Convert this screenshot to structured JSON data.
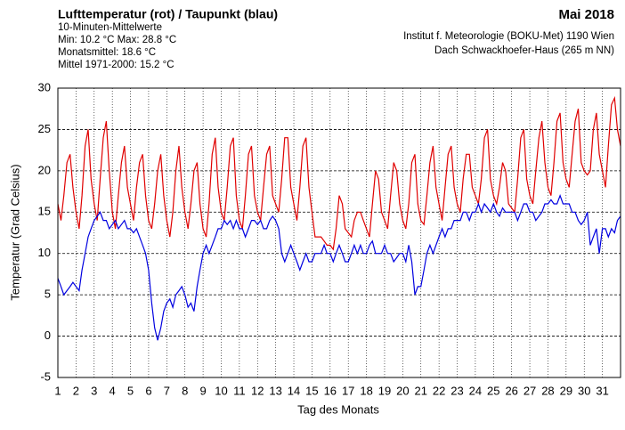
{
  "chart_data": {
    "type": "line",
    "title": "Lufttemperatur (rot) / Taupunkt (blau)",
    "subtitle": "10-Minuten-Mittelwerte",
    "annotations": [
      "Min:  10.2 °C   Max:  28.8 °C",
      "Monatsmittel:  18.6 °C",
      "Mittel 1971-2000:  15.2 °C"
    ],
    "period": "Mai 2018",
    "source": [
      "Institut f. Meteorologie (BOKU-Met) 1190 Wien",
      "Dach Schwackhoefer-Haus (265 m NN)"
    ],
    "x_label": "Tag des Monats",
    "y_label": "Temperatur (Grad Celsius)",
    "x": [
      1,
      1.17,
      1.33,
      1.5,
      1.67,
      1.83,
      2,
      2.17,
      2.33,
      2.5,
      2.67,
      2.83,
      3,
      3.17,
      3.33,
      3.5,
      3.67,
      3.83,
      4,
      4.17,
      4.33,
      4.5,
      4.67,
      4.83,
      5,
      5.17,
      5.33,
      5.5,
      5.67,
      5.83,
      6,
      6.17,
      6.33,
      6.5,
      6.67,
      6.83,
      7,
      7.17,
      7.33,
      7.5,
      7.67,
      7.83,
      8,
      8.17,
      8.33,
      8.5,
      8.67,
      8.83,
      9,
      9.17,
      9.33,
      9.5,
      9.67,
      9.83,
      10,
      10.17,
      10.33,
      10.5,
      10.67,
      10.83,
      11,
      11.17,
      11.33,
      11.5,
      11.67,
      11.83,
      12,
      12.17,
      12.33,
      12.5,
      12.67,
      12.83,
      13,
      13.17,
      13.33,
      13.5,
      13.67,
      13.83,
      14,
      14.17,
      14.33,
      14.5,
      14.67,
      14.83,
      15,
      15.17,
      15.33,
      15.5,
      15.67,
      15.83,
      16,
      16.17,
      16.33,
      16.5,
      16.67,
      16.83,
      17,
      17.17,
      17.33,
      17.5,
      17.67,
      17.83,
      18,
      18.17,
      18.33,
      18.5,
      18.67,
      18.83,
      19,
      19.17,
      19.33,
      19.5,
      19.67,
      19.83,
      20,
      20.17,
      20.33,
      20.5,
      20.67,
      20.83,
      21,
      21.17,
      21.33,
      21.5,
      21.67,
      21.83,
      22,
      22.17,
      22.33,
      22.5,
      22.67,
      22.83,
      23,
      23.17,
      23.33,
      23.5,
      23.67,
      23.83,
      24,
      24.17,
      24.33,
      24.5,
      24.67,
      24.83,
      25,
      25.17,
      25.33,
      25.5,
      25.67,
      25.83,
      26,
      26.17,
      26.33,
      26.5,
      26.67,
      26.83,
      27,
      27.17,
      27.33,
      27.5,
      27.67,
      27.83,
      28,
      28.17,
      28.33,
      28.5,
      28.67,
      28.83,
      29,
      29.17,
      29.33,
      29.5,
      29.67,
      29.83,
      30,
      30.17,
      30.33,
      30.5,
      30.67,
      30.83,
      31,
      31.17,
      31.33,
      31.5,
      31.67,
      31.83,
      32
    ],
    "series": [
      {
        "color": "#e00000",
        "values": [
          16,
          14,
          17,
          21,
          22,
          18,
          15,
          13,
          17,
          23,
          25,
          19,
          16,
          14,
          19,
          24,
          26,
          20,
          15,
          13,
          17,
          21,
          23,
          18,
          16,
          14,
          18,
          21,
          22,
          17,
          14,
          13,
          16,
          20,
          22,
          17,
          14,
          12,
          15,
          20,
          23,
          18,
          15,
          13,
          16,
          20,
          21,
          16,
          13,
          12,
          16,
          22,
          24,
          18,
          15,
          14,
          18,
          23,
          24,
          17,
          14,
          13,
          17,
          22,
          23,
          17,
          15,
          14,
          18,
          22,
          23,
          17,
          16,
          15,
          19,
          24,
          24,
          18,
          16,
          14,
          18,
          23,
          24,
          18,
          15,
          12,
          12,
          12,
          11.5,
          11,
          11,
          10.5,
          13,
          17,
          16,
          13,
          12.5,
          12,
          14,
          15,
          15,
          14,
          13,
          12,
          16,
          20,
          19,
          15,
          14,
          13,
          17,
          21,
          20,
          16,
          14,
          13,
          16,
          21,
          22,
          16,
          14,
          13.5,
          17,
          21,
          23,
          18,
          16,
          14,
          18,
          22,
          23,
          18,
          16,
          15,
          19,
          22,
          22,
          18,
          17,
          16,
          19,
          24,
          25,
          19,
          17,
          16,
          18,
          21,
          20,
          16,
          15.5,
          15,
          19,
          24,
          25,
          19,
          17,
          16,
          20,
          24,
          26,
          21,
          18,
          17,
          21,
          26,
          27,
          21,
          19,
          18,
          22,
          26,
          27.5,
          21,
          20,
          19.5,
          20,
          25,
          27,
          22,
          20,
          18,
          23,
          28,
          28.8,
          25,
          23
        ]
      },
      {
        "color": "#0000e0",
        "values": [
          7,
          6,
          5,
          5.5,
          6,
          6.5,
          6,
          5.5,
          8,
          10,
          12,
          13,
          14,
          14.5,
          15,
          14,
          14,
          13,
          13.5,
          14,
          13,
          13.5,
          14,
          13,
          13,
          12.5,
          13,
          12,
          11,
          10,
          8,
          4,
          1,
          -0.5,
          1,
          3,
          4,
          4.5,
          3.5,
          5,
          5.5,
          6,
          5,
          3.5,
          4,
          3,
          6,
          8,
          10,
          11,
          10,
          11,
          12,
          13,
          13,
          14,
          13.5,
          14,
          13,
          14,
          13,
          13,
          12,
          13,
          14,
          14,
          13.5,
          14,
          13,
          13,
          14,
          14.5,
          14,
          13,
          10,
          9,
          10,
          11,
          10,
          9,
          8,
          9,
          10,
          9,
          9,
          10,
          10,
          10,
          11,
          10,
          10,
          9,
          10,
          11,
          10,
          9,
          9,
          10,
          11,
          10,
          11,
          10,
          10,
          11,
          11.5,
          10,
          10,
          10,
          11,
          10,
          10,
          9,
          9.5,
          10,
          10,
          9,
          11,
          9,
          5,
          6,
          6,
          8,
          10,
          11,
          10,
          11,
          12,
          13,
          12,
          13,
          13,
          14,
          14,
          14,
          15,
          15,
          14,
          15,
          15,
          16,
          15,
          16,
          15.5,
          15,
          16,
          15,
          14.5,
          15.5,
          15,
          15,
          15,
          15,
          14,
          15,
          16,
          16,
          15,
          15,
          14,
          14.5,
          15,
          16,
          16,
          16.5,
          16,
          16,
          17,
          16,
          16,
          16,
          15,
          15,
          14,
          13.5,
          14,
          15,
          11,
          12,
          13,
          10,
          13,
          13,
          12,
          13,
          12.5,
          14,
          14.5
        ]
      }
    ],
    "xlim": [
      1,
      32
    ],
    "xticks": [
      1,
      2,
      3,
      4,
      5,
      6,
      7,
      8,
      9,
      10,
      11,
      12,
      13,
      14,
      15,
      16,
      17,
      18,
      19,
      20,
      21,
      22,
      23,
      24,
      25,
      26,
      27,
      28,
      29,
      30,
      31
    ],
    "ylim": [
      -5,
      30
    ],
    "yticks": [
      -5,
      0,
      5,
      10,
      15,
      20,
      25,
      30
    ],
    "grid": true
  }
}
